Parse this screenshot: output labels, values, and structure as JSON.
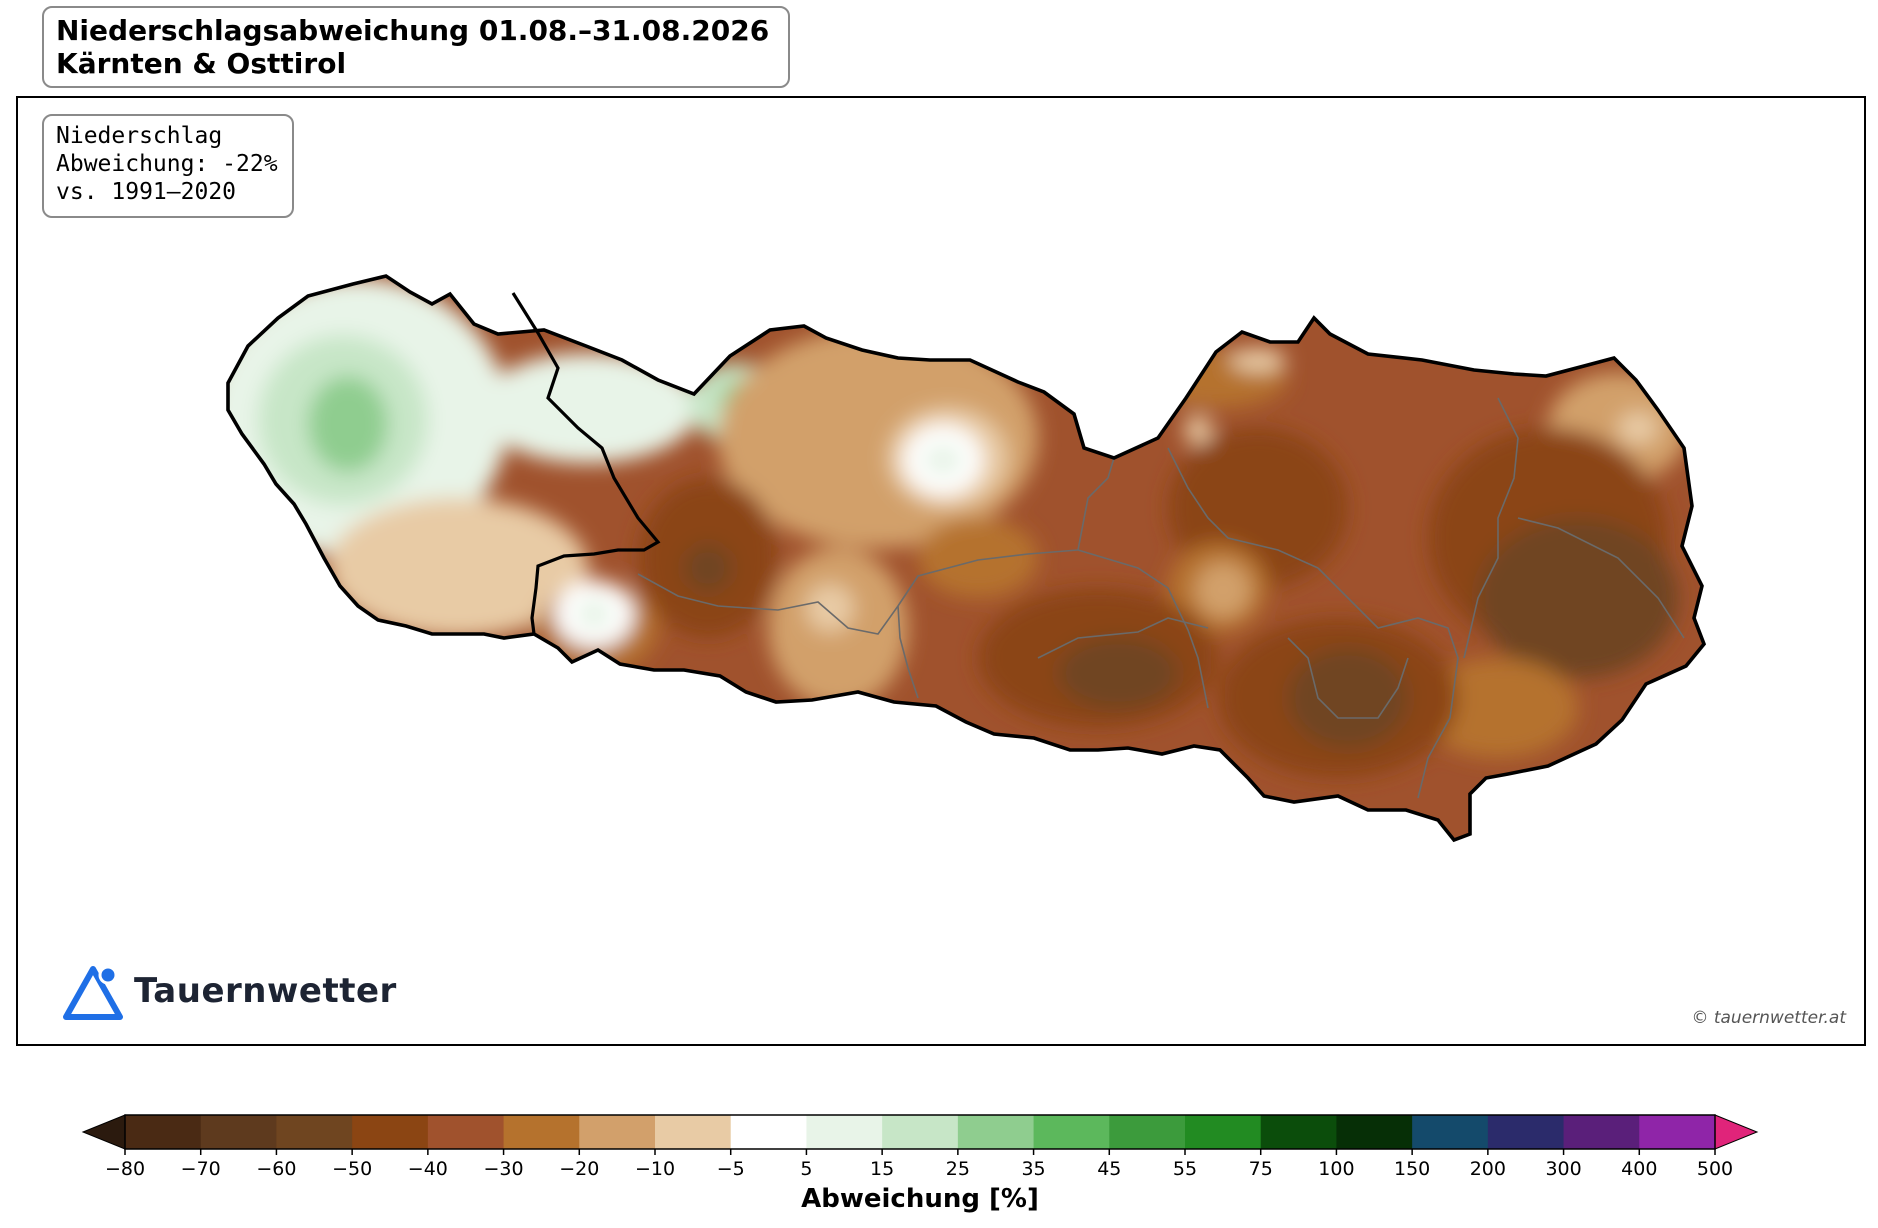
{
  "title": {
    "line1": "Niederschlagsabweichung 01.08.–31.08.2026",
    "line2": "Kärnten & Osttirol"
  },
  "info": {
    "line1": "Niederschlag",
    "line2": "Abweichung: -22%",
    "line3": "vs. 1991–2020"
  },
  "logo": {
    "text": "Tauernwetter",
    "icon": "triangle-pin-icon",
    "color": "#1f6fe6"
  },
  "copyright": "© tauernwetter.at",
  "colorbar": {
    "label": "Abweichung [%]",
    "ticks": [
      "−80",
      "−70",
      "−60",
      "−50",
      "−40",
      "−30",
      "−20",
      "−10",
      "−5",
      "5",
      "15",
      "25",
      "35",
      "45",
      "55",
      "75",
      "100",
      "150",
      "200",
      "300",
      "400",
      "500"
    ],
    "colors": [
      "#4a2a14",
      "#5e3a1e",
      "#6f4520",
      "#8b4513",
      "#a0522d",
      "#b5722d",
      "#d2a06b",
      "#e8cba5",
      "#ffffff",
      "#e8f4e8",
      "#c7e6c7",
      "#8fcd8f",
      "#5cb85c",
      "#3c9b3c",
      "#228b22",
      "#0b4d0b",
      "#062f06",
      "#144a6b",
      "#2b2b6b",
      "#5a1f7a",
      "#8f25a8"
    ],
    "under_color": "#2b1a0e",
    "over_color": "#e0247a"
  },
  "chart_data": {
    "type": "heatmap",
    "title": "Niederschlagsabweichung 01.08.–31.08.2026",
    "subtitle": "Kärnten & Osttirol",
    "variable": "Niederschlag",
    "mean_deviation_percent": -22,
    "reference_period": "1991–2020",
    "colorbar_label": "Abweichung [%]",
    "levels": [
      -80,
      -70,
      -60,
      -50,
      -40,
      -30,
      -20,
      -10,
      -5,
      5,
      15,
      25,
      35,
      45,
      55,
      75,
      100,
      150,
      200,
      300,
      400,
      500
    ]
  }
}
